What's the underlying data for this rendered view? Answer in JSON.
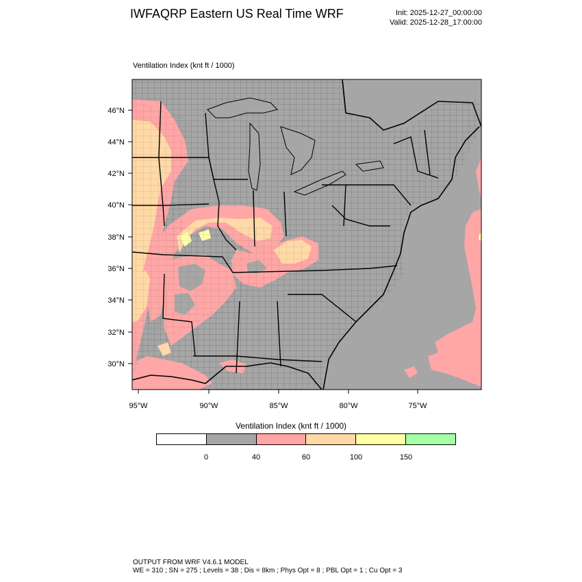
{
  "header": {
    "title": "IWFAQRP Eastern US Real Time WRF",
    "init": "Init: 2025-12-27_00:00:00",
    "valid": "Valid: 2025-12-28_17:00:00"
  },
  "plot_label": "Ventilation Index   (knt ft / 1000)",
  "map": {
    "lat_labels": [
      "46°N",
      "44°N",
      "42°N",
      "40°N",
      "38°N",
      "36°N",
      "34°N",
      "32°N",
      "30°N"
    ],
    "lon_labels": [
      "95°W",
      "90°W",
      "85°W",
      "80°W",
      "75°W"
    ],
    "colors": {
      "below_0": "#ffffff",
      "0_40": "#a6a6a6",
      "40_60": "#ffa6a6",
      "60_100": "#ffd9a6",
      "100_150": "#ffffa6",
      "above_150": "#a6ffa6"
    }
  },
  "legend": {
    "title": "Ventilation Index  (knt ft / 1000)",
    "ticks": [
      "0",
      "40",
      "60",
      "100",
      "150"
    ],
    "colors": [
      "#ffffff",
      "#a6a6a6",
      "#ffa6a6",
      "#ffd9a6",
      "#ffffa6",
      "#a6ffa6"
    ]
  },
  "footer": {
    "line1": "OUTPUT FROM WRF V4.6.1 MODEL",
    "line2": "WE = 310 ; SN = 275 ; Levels = 38 ; Dis = 8km ; Phys Opt = 8 ; PBL Opt = 1 ; Cu Opt = 3"
  }
}
